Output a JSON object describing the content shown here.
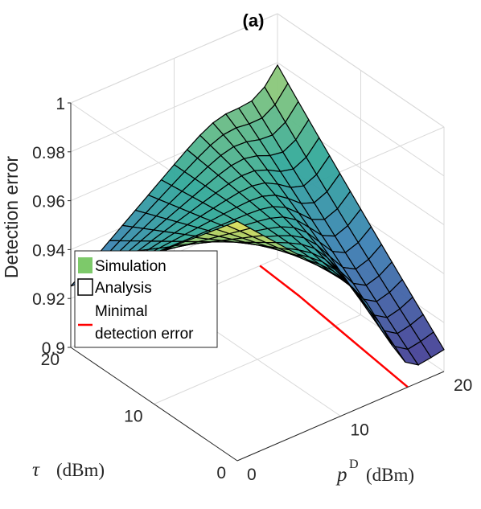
{
  "chart_data": {
    "type": "surface",
    "title": "(a)",
    "zlabel": "Detection error",
    "xlabel": {
      "symbol": "p",
      "superscript": "D",
      "unit": "(dBm)"
    },
    "ylabel": {
      "symbol": "τ",
      "unit": "(dBm)"
    },
    "xlim": [
      0,
      20
    ],
    "ylim": [
      0,
      20
    ],
    "zlim": [
      0.9,
      1.0
    ],
    "xticks": [
      "0",
      "10",
      "20"
    ],
    "yticks": [
      "0",
      "10",
      "20"
    ],
    "zticks": [
      "0.9",
      "0.92",
      "0.94",
      "0.96",
      "0.98",
      "1"
    ],
    "grid": true,
    "legend": {
      "placement": "middle-left",
      "entries": [
        {
          "label": "Simulation",
          "marker": "filled-green"
        },
        {
          "label": "Analysis",
          "marker": "black-outline"
        },
        {
          "label": "Minimal",
          "label2": "detection error",
          "marker": "red-line"
        }
      ]
    },
    "mesh_x": [
      0,
      1.25,
      2.5,
      3.75,
      5,
      6.25,
      7.5,
      8.75,
      10,
      11.25,
      12.5,
      13.75,
      15,
      16.25,
      17.5,
      18.75,
      20
    ],
    "mesh_y": [
      0,
      1.25,
      2.5,
      3.75,
      5,
      6.25,
      7.5,
      8.75,
      10,
      11.25,
      12.5,
      13.75,
      15,
      16.25,
      17.5,
      18.75,
      20
    ],
    "surface_corners": {
      "p0_tau0": 0.998,
      "p0_tau20": 0.925,
      "p20_tau20": 0.988,
      "p20_tau0": 0.915
    },
    "minimal_detection_error": {
      "p_D": [
        16.5,
        17.0,
        17.5,
        18.0,
        18.3
      ],
      "tau": [
        0,
        5,
        10,
        15,
        20
      ],
      "value": [
        0.9,
        0.9,
        0.9,
        0.9,
        0.9
      ]
    },
    "colors": {
      "high": "#f9e85a",
      "mid": "#31a99a",
      "low": "#4a2b8c",
      "mesh": "#000000",
      "minimal": "#ff0000",
      "legend_sim": "#7dc96a"
    }
  }
}
